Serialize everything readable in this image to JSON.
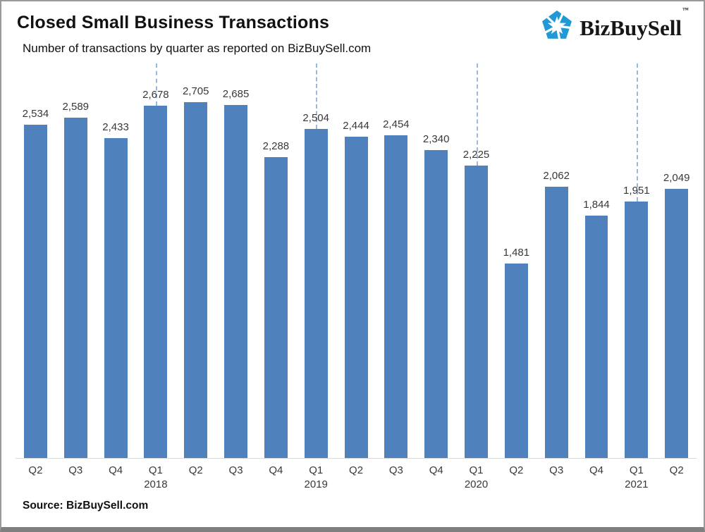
{
  "header": {
    "title": "Closed Small Business Transactions",
    "subtitle": "Number of transactions by quarter as reported on BizBuySell.com"
  },
  "logo": {
    "name": "BizBuySell",
    "text": "BizBuySell",
    "trademark": "™",
    "icon_color": "#2199D6"
  },
  "footer": {
    "source": "Source: BizBuySell.com"
  },
  "chart_data": {
    "type": "bar",
    "title": "Closed Small Business Transactions",
    "subtitle": "Number of transactions by quarter as reported on BizBuySell.com",
    "categories": [
      "Q2",
      "Q3",
      "Q4",
      "Q1",
      "Q2",
      "Q3",
      "Q4",
      "Q1",
      "Q2",
      "Q3",
      "Q4",
      "Q1",
      "Q2",
      "Q3",
      "Q4",
      "Q1",
      "Q2"
    ],
    "years": [
      "",
      "",
      "",
      "2018",
      "",
      "",
      "",
      "2019",
      "",
      "",
      "",
      "2020",
      "",
      "",
      "",
      "2021",
      ""
    ],
    "values": [
      2534,
      2589,
      2433,
      2678,
      2705,
      2685,
      2288,
      2504,
      2444,
      2454,
      2340,
      2225,
      1481,
      2062,
      1844,
      1951,
      2049
    ],
    "value_labels": [
      "2,534",
      "2,589",
      "2,433",
      "2,678",
      "2,705",
      "2,685",
      "2,288",
      "2,504",
      "2,444",
      "2,454",
      "2,340",
      "2,225",
      "1,481",
      "2,062",
      "1,844",
      "1,951",
      "2,049"
    ],
    "year_line_indices": [
      3,
      7,
      11,
      15
    ],
    "xlabel": "",
    "ylabel": "",
    "ylim": [
      0,
      3000
    ],
    "gridlines": false,
    "legend_position": "none",
    "bar_color": "#4F81BD",
    "year_dash_color": "#9db8d9",
    "value_label_position": "above bars"
  }
}
